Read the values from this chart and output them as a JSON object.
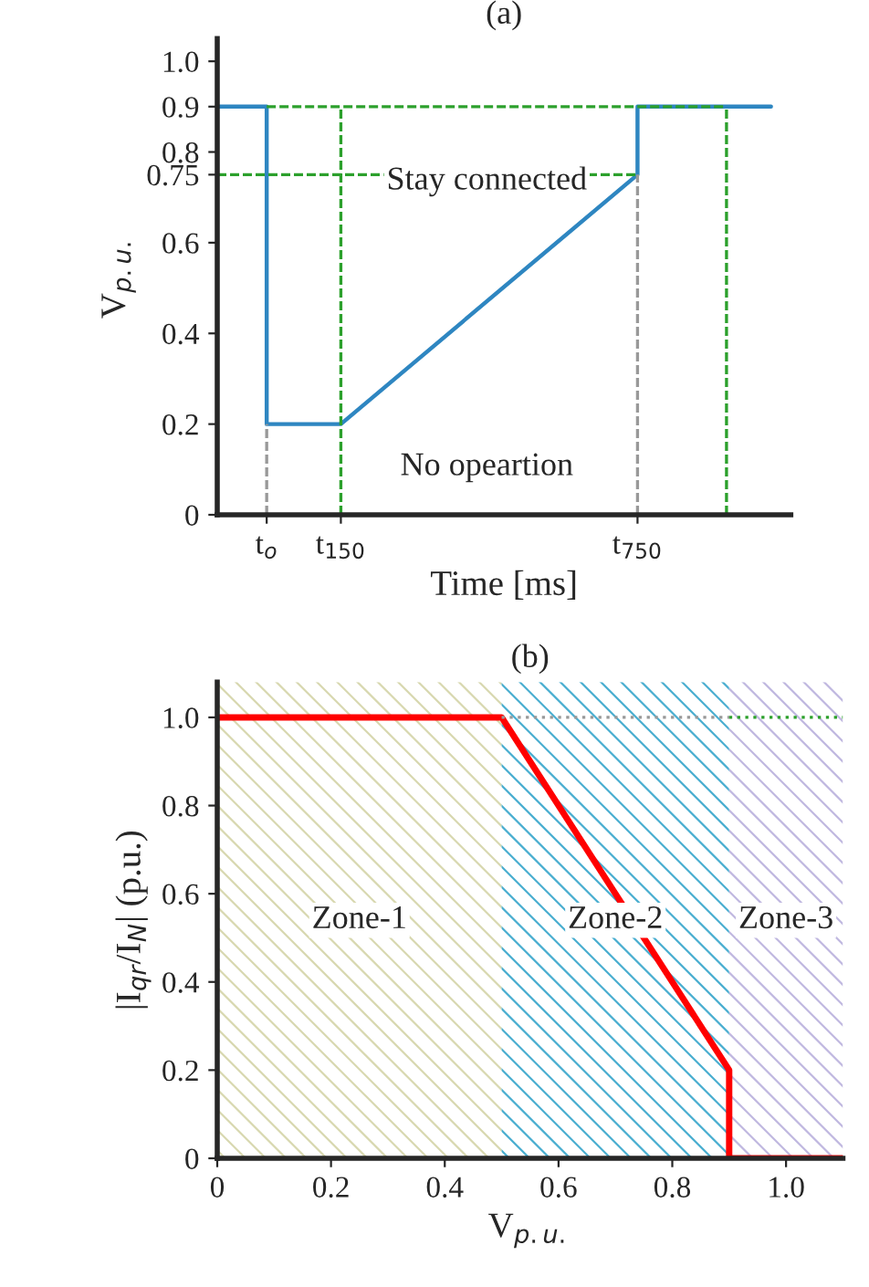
{
  "chart_data": [
    {
      "type": "line",
      "title": "(a)",
      "xlabel": "Time [ms]",
      "ylabel": "V$_{p.u.}$",
      "xlim": [
        -100,
        1060
      ],
      "ylim": [
        0,
        1.05
      ],
      "xticks": [
        {
          "value": 0,
          "label": "t$_{o}$"
        },
        {
          "value": 150,
          "label": "t$_{150}$"
        },
        {
          "value": 750,
          "label": "t$_{750}$"
        }
      ],
      "yticks": [
        0,
        0.2,
        0.4,
        0.6,
        0.75,
        0.8,
        0.9,
        {
          "value": 1.0,
          "label": "1.0"
        }
      ],
      "series": [
        {
          "color": "#2e86c1",
          "x": [
            -100,
            0,
            0,
            150,
            750,
            750,
            1020
          ],
          "values": [
            0.9,
            0.9,
            0.2,
            0.2,
            0.75,
            0.9,
            0.9
          ],
          "line_style": "solid"
        },
        {
          "color": "#2ca02c",
          "x": [
            0,
            930
          ],
          "values": [
            0.9,
            0.9
          ],
          "line_style": "dashed"
        },
        {
          "color": "#2ca02c",
          "x": [
            -100,
            750
          ],
          "values": [
            0.75,
            0.75
          ],
          "line_style": "dashed"
        },
        {
          "color": "#2ca02c",
          "x": [
            150,
            150
          ],
          "values": [
            0,
            0.9
          ],
          "line_style": "dashed"
        },
        {
          "color": "#2ca02c",
          "x": [
            930,
            930
          ],
          "values": [
            0,
            0.9
          ],
          "line_style": "dashed"
        },
        {
          "color": "#999999",
          "x": [
            0,
            0
          ],
          "values": [
            0,
            0.2
          ],
          "line_style": "dashed"
        },
        {
          "color": "#999999",
          "x": [
            750,
            750
          ],
          "values": [
            0,
            0.75
          ],
          "line_style": "dashed"
        }
      ],
      "annotations": [
        "Stay connected",
        "No opeartion"
      ]
    },
    {
      "type": "line",
      "title": "(b)",
      "xlabel": "V$_{p.u.}$",
      "ylabel": "|I$_{qr}$/I$_{N}$| (p.u.)",
      "xlim": [
        0,
        1.1
      ],
      "ylim": [
        0,
        1.08
      ],
      "xticks": [
        0,
        0.2,
        0.4,
        0.6,
        0.8,
        {
          "value": 1.0,
          "label": "1.0"
        }
      ],
      "yticks": [
        0,
        0.2,
        0.4,
        0.6,
        0.8,
        {
          "value": 1.0,
          "label": "1.0"
        }
      ],
      "series": [
        {
          "color": "#ff0000",
          "x": [
            0,
            0.5,
            0.9,
            0.9,
            1.1
          ],
          "values": [
            1,
            1,
            0.2,
            0,
            0
          ],
          "line_style": "solid"
        },
        {
          "color": "#999999",
          "x": [
            0.5,
            0.9
          ],
          "values": [
            1,
            1
          ],
          "line_style": "dotted"
        },
        {
          "color": "#2ca02c",
          "x": [
            0.9,
            1.1
          ],
          "values": [
            1,
            1
          ],
          "line_style": "dotted"
        }
      ],
      "bands": [
        {
          "axis": "x",
          "from": 0,
          "to": 0.5,
          "label": "Zone-1",
          "color": "#d8d8b0"
        },
        {
          "axis": "x",
          "from": 0.5,
          "to": 0.9,
          "label": "Zone-2",
          "color": "#4aaed0"
        },
        {
          "axis": "x",
          "from": 0.9,
          "to": 1.1,
          "label": "Zone-3",
          "color": "#c0b8e0"
        }
      ]
    }
  ]
}
